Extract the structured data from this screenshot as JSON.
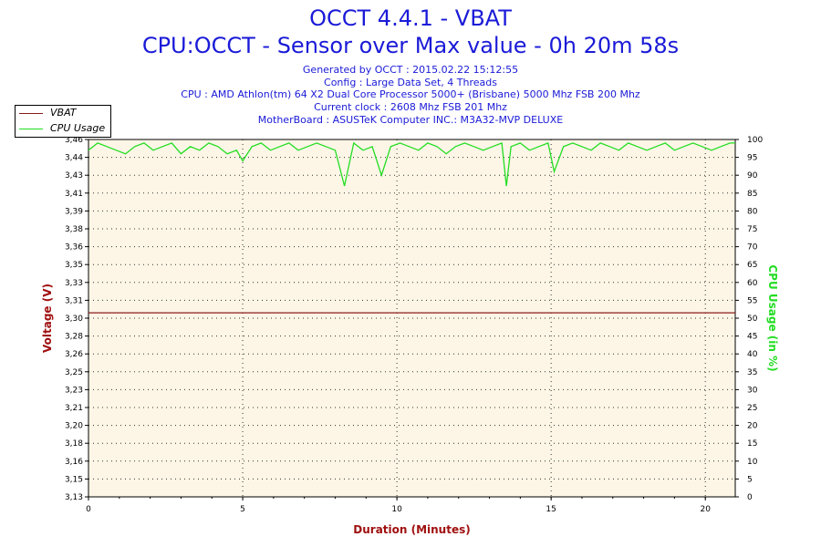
{
  "header": {
    "title": "OCCT 4.4.1 - VBAT",
    "subtitle": "CPU:OCCT - Sensor over Max value - 0h 20m 58s",
    "info_lines": [
      "Generated by OCCT : 2015.02.22 15:12:55",
      "Config : Large Data Set, 4 Threads",
      "CPU : AMD Athlon(tm) 64 X2 Dual Core Processor 5000+ (Brisbane) 5000 Mhz FSB 200 Mhz",
      "Current clock : 2608 Mhz FSB 201 Mhz",
      "MotherBoard : ASUSTeK Computer INC.: M3A32-MVP DELUXE"
    ]
  },
  "legend": {
    "items": [
      {
        "label": "VBAT",
        "color": "#8b1a1a"
      },
      {
        "label": "CPU Usage",
        "color": "#22dd22"
      }
    ]
  },
  "chart_data": {
    "type": "line",
    "xlabel": "Duration (Minutes)",
    "ylabel_left": "Voltage (V)",
    "ylabel_right": "CPU Usage (in %)",
    "xlim": [
      0,
      20.97
    ],
    "ylim_left": [
      3.13,
      3.46
    ],
    "ylim_right": [
      0,
      100
    ],
    "x_ticks": [
      "0",
      "5",
      "10",
      "15",
      "20"
    ],
    "x_tick_values": [
      0,
      5,
      10,
      15,
      20
    ],
    "y_left_ticks": [
      "3,13",
      "3,15",
      "3,16",
      "3,18",
      "3,20",
      "3,21",
      "3,23",
      "3,25",
      "3,26",
      "3,28",
      "3,30",
      "3,31",
      "3,33",
      "3,35",
      "3,36",
      "3,38",
      "3,39",
      "3,41",
      "3,43",
      "3,44",
      "3,46"
    ],
    "y_right_ticks": [
      "0",
      "5",
      "10",
      "15",
      "20",
      "25",
      "30",
      "35",
      "40",
      "45",
      "50",
      "55",
      "60",
      "65",
      "70",
      "75",
      "80",
      "85",
      "90",
      "95",
      "100"
    ],
    "grid": true,
    "legend_position": "top-left",
    "colors": {
      "vbat": "#8b1a1a",
      "cpu": "#22dd22",
      "plot_background": "#fdf6e6",
      "axis_label_left": "#a01010",
      "axis_label_x": "#a01010",
      "axis_label_right": "#22dd22"
    },
    "series": [
      {
        "name": "VBAT",
        "axis": "left",
        "x": [
          0,
          20.97
        ],
        "values": [
          3.3,
          3.3
        ]
      },
      {
        "name": "CPU Usage",
        "axis": "right",
        "x": [
          0.0,
          0.3,
          0.6,
          0.9,
          1.2,
          1.5,
          1.8,
          2.1,
          2.4,
          2.7,
          3.0,
          3.3,
          3.6,
          3.9,
          4.2,
          4.5,
          4.8,
          5.0,
          5.3,
          5.6,
          5.9,
          6.2,
          6.5,
          6.8,
          7.1,
          7.4,
          7.7,
          8.0,
          8.3,
          8.6,
          8.9,
          9.2,
          9.5,
          9.8,
          10.1,
          10.4,
          10.7,
          11.0,
          11.3,
          11.6,
          11.9,
          12.2,
          12.5,
          12.8,
          13.1,
          13.4,
          13.55,
          13.7,
          14.0,
          14.3,
          14.6,
          14.9,
          15.1,
          15.4,
          15.7,
          16.0,
          16.3,
          16.6,
          16.9,
          17.2,
          17.5,
          17.8,
          18.1,
          18.4,
          18.7,
          19.0,
          19.3,
          19.6,
          19.9,
          20.2,
          20.5,
          20.8,
          20.97
        ],
        "values": [
          97,
          99,
          98,
          97,
          96,
          98,
          99,
          97,
          98,
          99,
          96,
          98,
          97,
          99,
          98,
          96,
          97,
          94,
          98,
          99,
          97,
          98,
          99,
          97,
          98,
          99,
          98,
          97,
          87,
          99,
          97,
          98,
          90,
          98,
          99,
          98,
          97,
          99,
          98,
          96,
          98,
          99,
          98,
          97,
          98,
          99,
          87,
          98,
          99,
          97,
          98,
          99,
          91,
          98,
          99,
          98,
          97,
          99,
          98,
          97,
          99,
          98,
          97,
          98,
          99,
          97,
          98,
          99,
          98,
          97,
          98,
          99,
          99
        ]
      }
    ]
  }
}
